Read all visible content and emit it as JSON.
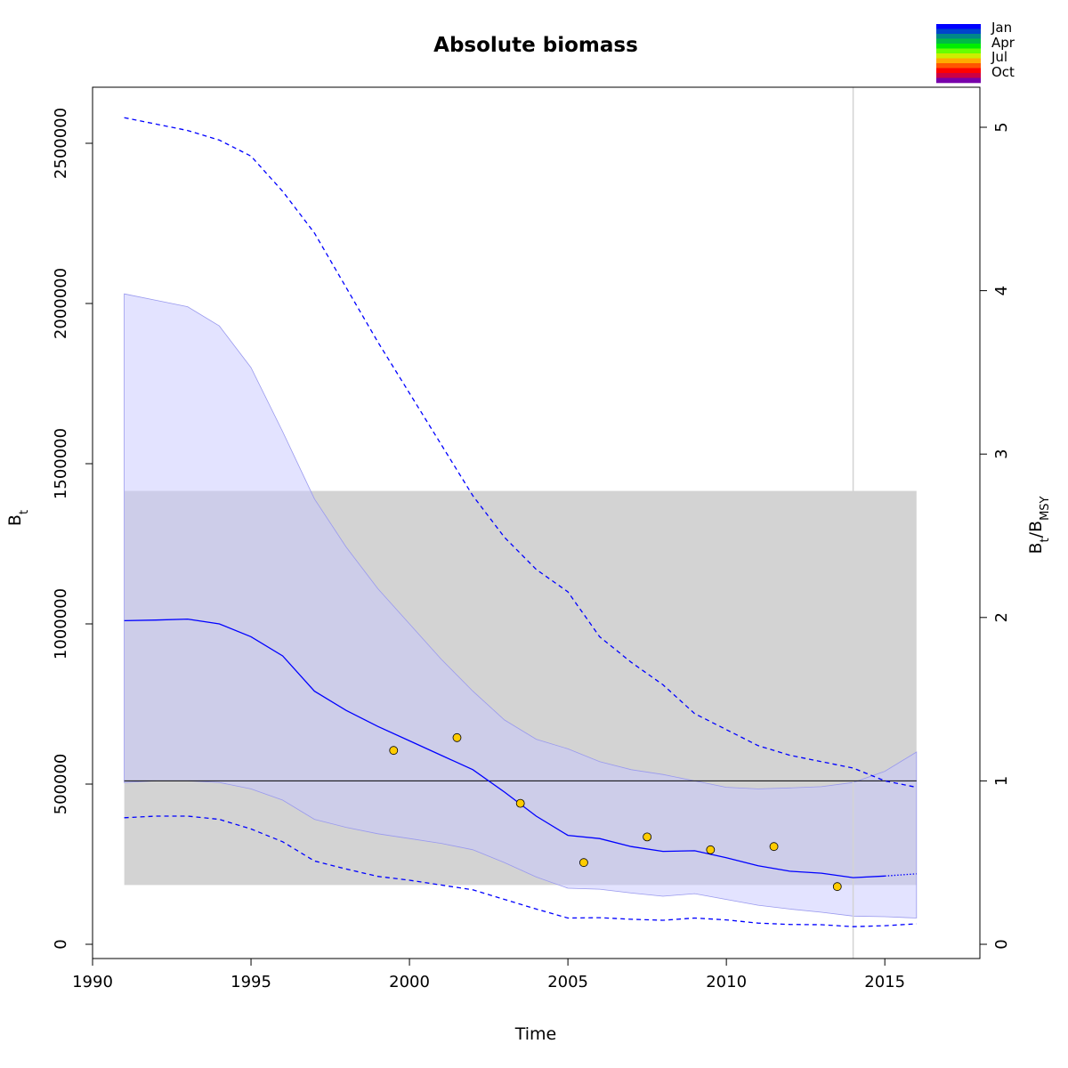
{
  "chart_data": {
    "type": "line",
    "title": "Absolute biomass",
    "xlabel": "Time",
    "ylabel": "B_t",
    "ylabel_parts": {
      "main": "B",
      "sub": "t"
    },
    "y2label_parts": {
      "num": "B",
      "num_sub": "t",
      "sep": "/",
      "den": "B",
      "den_sub": "MSY"
    },
    "xlim": [
      1990,
      2018
    ],
    "ylim": [
      0,
      2600000
    ],
    "y2lim": [
      0,
      5
    ],
    "x_ticks": [
      1990,
      1995,
      2000,
      2005,
      2010,
      2015
    ],
    "y_ticks": [
      0,
      500000,
      1000000,
      1500000,
      2000000,
      2500000
    ],
    "y_tick_labels": [
      "0",
      "500000",
      "1000000",
      "1500000",
      "2000000",
      "2500000"
    ],
    "y2_ticks": [
      0,
      1,
      2,
      3,
      4,
      5
    ],
    "bmsy": 510000,
    "bmsy_ci_band": {
      "x": [
        1991,
        2016
      ],
      "y": [
        185000,
        1415000
      ]
    },
    "vline_x": 2014,
    "colors": {
      "estimate": "#0000ff",
      "ci_band": "#c8c8ff",
      "bmsy_band": "#d3d3d3",
      "points": "#ffcc00",
      "vline": "#d3d3d3"
    },
    "series": [
      {
        "name": "Estimate",
        "style": "solid",
        "x": [
          1991,
          1992,
          1993,
          1994,
          1995,
          1996,
          1997,
          1998,
          1999,
          2000,
          2001,
          2002,
          2003,
          2004,
          2005,
          2006,
          2007,
          2008,
          2009,
          2010,
          2011,
          2012,
          2013,
          2014,
          2015
        ],
        "y": [
          1010000,
          1012000,
          1015000,
          1000000,
          960000,
          900000,
          790000,
          730000,
          680000,
          635000,
          590000,
          545000,
          475000,
          400000,
          340000,
          330000,
          305000,
          290000,
          292000,
          270000,
          245000,
          228000,
          222000,
          208000,
          213000
        ]
      },
      {
        "name": "Forecast",
        "style": "dotted",
        "x": [
          2015,
          2016
        ],
        "y": [
          213000,
          220000
        ]
      }
    ],
    "ci_upper_dashed": {
      "x": [
        1991,
        1992,
        1993,
        1994,
        1995,
        1996,
        1997,
        1998,
        1999,
        2000,
        2001,
        2002,
        2003,
        2004,
        2005,
        2006,
        2007,
        2008,
        2009,
        2010,
        2011,
        2012,
        2013,
        2014,
        2015,
        2016
      ],
      "y": [
        2580000,
        2560000,
        2540000,
        2510000,
        2460000,
        2350000,
        2220000,
        2050000,
        1880000,
        1720000,
        1560000,
        1400000,
        1270000,
        1170000,
        1100000,
        960000,
        880000,
        810000,
        720000,
        670000,
        620000,
        590000,
        570000,
        550000,
        510000,
        490000
      ]
    },
    "ci_lower_dashed": {
      "x": [
        1991,
        1992,
        1993,
        1994,
        1995,
        1996,
        1997,
        1998,
        1999,
        2000,
        2001,
        2002,
        2003,
        2004,
        2005,
        2006,
        2007,
        2008,
        2009,
        2010,
        2011,
        2012,
        2013,
        2014,
        2015,
        2016
      ],
      "y": [
        395000,
        400000,
        400000,
        390000,
        360000,
        320000,
        260000,
        235000,
        212000,
        200000,
        185000,
        170000,
        140000,
        110000,
        82000,
        83000,
        78000,
        75000,
        82000,
        76000,
        66000,
        62000,
        61000,
        55000,
        58000,
        64000
      ]
    },
    "ci_band_upper": {
      "x": [
        1991,
        1992,
        1993,
        1994,
        1995,
        1996,
        1997,
        1998,
        1999,
        2000,
        2001,
        2002,
        2003,
        2004,
        2005,
        2006,
        2007,
        2008,
        2009,
        2010,
        2011,
        2012,
        2013,
        2014,
        2015,
        2016
      ],
      "y": [
        2030000,
        2010000,
        1990000,
        1930000,
        1800000,
        1600000,
        1390000,
        1240000,
        1110000,
        1000000,
        890000,
        790000,
        700000,
        640000,
        610000,
        570000,
        545000,
        530000,
        510000,
        490000,
        485000,
        488000,
        492000,
        505000,
        540000,
        600000
      ]
    },
    "ci_band_lower": {
      "x": [
        1991,
        1992,
        1993,
        1994,
        1995,
        1996,
        1997,
        1998,
        1999,
        2000,
        2001,
        2002,
        2003,
        2004,
        2005,
        2006,
        2007,
        2008,
        2009,
        2010,
        2011,
        2012,
        2013,
        2014,
        2015,
        2016
      ],
      "y": [
        505000,
        510000,
        510000,
        505000,
        485000,
        450000,
        390000,
        365000,
        345000,
        330000,
        315000,
        295000,
        255000,
        210000,
        175000,
        172000,
        160000,
        150000,
        158000,
        140000,
        122000,
        110000,
        100000,
        88000,
        86000,
        82000
      ]
    },
    "index_points": {
      "x": [
        1999.5,
        2001.5,
        2003.5,
        2005.5,
        2007.5,
        2009.5,
        2011.5,
        2013.5
      ],
      "y": [
        605000,
        645000,
        440000,
        255000,
        335000,
        295000,
        305000,
        180000
      ]
    },
    "season_legend": {
      "labels": [
        "Jan",
        "Apr",
        "Jul",
        "Oct"
      ],
      "colors": [
        "#0000ff",
        "#0044cc",
        "#008888",
        "#00bb44",
        "#00ee00",
        "#66ff00",
        "#ccee00",
        "#ffaa00",
        "#ff5500",
        "#ff0000",
        "#cc0044",
        "#7700aa"
      ]
    }
  }
}
